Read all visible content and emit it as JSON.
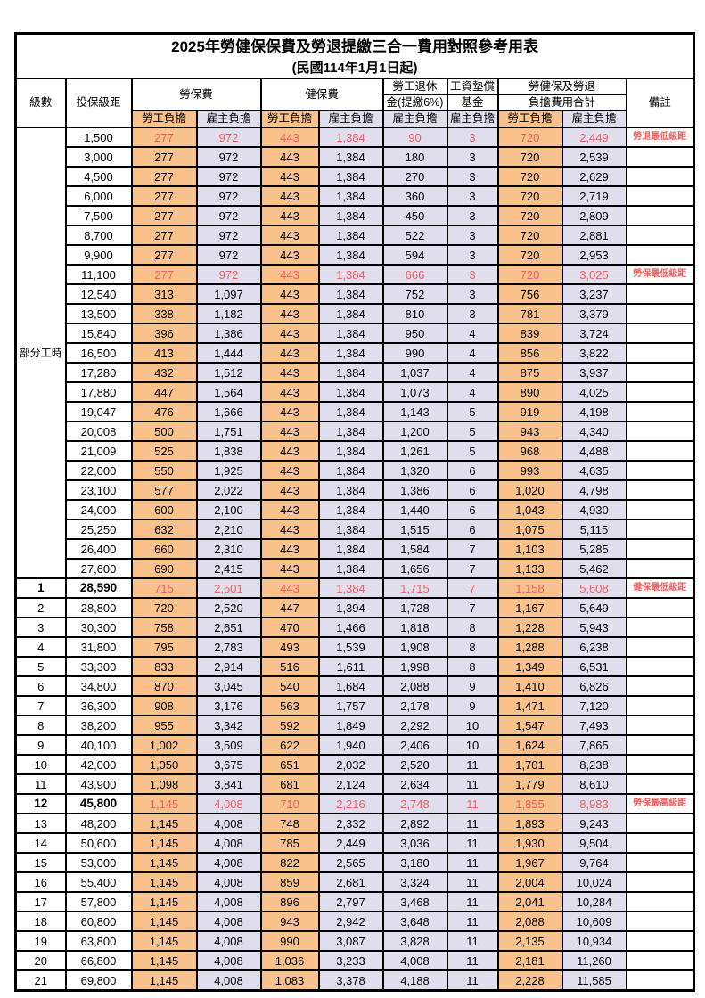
{
  "title": {
    "line1": "2025年勞健保保費及勞退提繳三合一費用對照參考用表",
    "line2": "(民國114年1月1日起)"
  },
  "colors": {
    "employee_bg": "#F9C28D",
    "employer_bg": "#E0DDEC",
    "highlight_red": "#F25F5F",
    "border": "#000000"
  },
  "header": {
    "level": "級數",
    "bracket": "投保級距",
    "labor_insurance": "勞保費",
    "health_insurance": "健保費",
    "pension_line1": "勞工退休",
    "pension_line2": "金(提繳6%)",
    "wage_fund_line1": "工資墊償",
    "wage_fund_line2": "基金",
    "total_line1": "勞健保及勞退",
    "total_line2": "負擔費用合計",
    "remark": "備註",
    "employee_label": "勞工負擔",
    "employer_label": "雇主負擔"
  },
  "table": {
    "part_time_label": "部分工時",
    "part_time_rowspan": 23,
    "rows": [
      {
        "level": null,
        "bracket": "1,500",
        "values": [
          "277",
          "972",
          "443",
          "1,384",
          "90",
          "3",
          "720",
          "2,449"
        ],
        "remark": "勞退最低級距",
        "red": true,
        "bold": false
      },
      {
        "level": null,
        "bracket": "3,000",
        "values": [
          "277",
          "972",
          "443",
          "1,384",
          "180",
          "3",
          "720",
          "2,539"
        ],
        "remark": "",
        "red": false,
        "bold": false
      },
      {
        "level": null,
        "bracket": "4,500",
        "values": [
          "277",
          "972",
          "443",
          "1,384",
          "270",
          "3",
          "720",
          "2,629"
        ],
        "remark": "",
        "red": false,
        "bold": false
      },
      {
        "level": null,
        "bracket": "6,000",
        "values": [
          "277",
          "972",
          "443",
          "1,384",
          "360",
          "3",
          "720",
          "2,719"
        ],
        "remark": "",
        "red": false,
        "bold": false
      },
      {
        "level": null,
        "bracket": "7,500",
        "values": [
          "277",
          "972",
          "443",
          "1,384",
          "450",
          "3",
          "720",
          "2,809"
        ],
        "remark": "",
        "red": false,
        "bold": false
      },
      {
        "level": null,
        "bracket": "8,700",
        "values": [
          "277",
          "972",
          "443",
          "1,384",
          "522",
          "3",
          "720",
          "2,881"
        ],
        "remark": "",
        "red": false,
        "bold": false
      },
      {
        "level": null,
        "bracket": "9,900",
        "values": [
          "277",
          "972",
          "443",
          "1,384",
          "594",
          "3",
          "720",
          "2,953"
        ],
        "remark": "",
        "red": false,
        "bold": false
      },
      {
        "level": null,
        "bracket": "11,100",
        "values": [
          "277",
          "972",
          "443",
          "1,384",
          "666",
          "3",
          "720",
          "3,025"
        ],
        "remark": "勞保最低級距",
        "red": true,
        "bold": false
      },
      {
        "level": null,
        "bracket": "12,540",
        "values": [
          "313",
          "1,097",
          "443",
          "1,384",
          "752",
          "3",
          "756",
          "3,237"
        ],
        "remark": "",
        "red": false,
        "bold": false
      },
      {
        "level": null,
        "bracket": "13,500",
        "values": [
          "338",
          "1,182",
          "443",
          "1,384",
          "810",
          "3",
          "781",
          "3,379"
        ],
        "remark": "",
        "red": false,
        "bold": false
      },
      {
        "level": null,
        "bracket": "15,840",
        "values": [
          "396",
          "1,386",
          "443",
          "1,384",
          "950",
          "4",
          "839",
          "3,724"
        ],
        "remark": "",
        "red": false,
        "bold": false
      },
      {
        "level": null,
        "bracket": "16,500",
        "values": [
          "413",
          "1,444",
          "443",
          "1,384",
          "990",
          "4",
          "856",
          "3,822"
        ],
        "remark": "",
        "red": false,
        "bold": false
      },
      {
        "level": null,
        "bracket": "17,280",
        "values": [
          "432",
          "1,512",
          "443",
          "1,384",
          "1,037",
          "4",
          "875",
          "3,937"
        ],
        "remark": "",
        "red": false,
        "bold": false
      },
      {
        "level": null,
        "bracket": "17,880",
        "values": [
          "447",
          "1,564",
          "443",
          "1,384",
          "1,073",
          "4",
          "890",
          "4,025"
        ],
        "remark": "",
        "red": false,
        "bold": false
      },
      {
        "level": null,
        "bracket": "19,047",
        "values": [
          "476",
          "1,666",
          "443",
          "1,384",
          "1,143",
          "5",
          "919",
          "4,198"
        ],
        "remark": "",
        "red": false,
        "bold": false
      },
      {
        "level": null,
        "bracket": "20,008",
        "values": [
          "500",
          "1,751",
          "443",
          "1,384",
          "1,200",
          "5",
          "943",
          "4,340"
        ],
        "remark": "",
        "red": false,
        "bold": false
      },
      {
        "level": null,
        "bracket": "21,009",
        "values": [
          "525",
          "1,838",
          "443",
          "1,384",
          "1,261",
          "5",
          "968",
          "4,488"
        ],
        "remark": "",
        "red": false,
        "bold": false
      },
      {
        "level": null,
        "bracket": "22,000",
        "values": [
          "550",
          "1,925",
          "443",
          "1,384",
          "1,320",
          "6",
          "993",
          "4,635"
        ],
        "remark": "",
        "red": false,
        "bold": false
      },
      {
        "level": null,
        "bracket": "23,100",
        "values": [
          "577",
          "2,022",
          "443",
          "1,384",
          "1,386",
          "6",
          "1,020",
          "4,798"
        ],
        "remark": "",
        "red": false,
        "bold": false
      },
      {
        "level": null,
        "bracket": "24,000",
        "values": [
          "600",
          "2,100",
          "443",
          "1,384",
          "1,440",
          "6",
          "1,043",
          "4,930"
        ],
        "remark": "",
        "red": false,
        "bold": false
      },
      {
        "level": null,
        "bracket": "25,250",
        "values": [
          "632",
          "2,210",
          "443",
          "1,384",
          "1,515",
          "6",
          "1,075",
          "5,115"
        ],
        "remark": "",
        "red": false,
        "bold": false
      },
      {
        "level": null,
        "bracket": "26,400",
        "values": [
          "660",
          "2,310",
          "443",
          "1,384",
          "1,584",
          "7",
          "1,103",
          "5,285"
        ],
        "remark": "",
        "red": false,
        "bold": false
      },
      {
        "level": null,
        "bracket": "27,600",
        "values": [
          "690",
          "2,415",
          "443",
          "1,384",
          "1,656",
          "7",
          "1,133",
          "5,462"
        ],
        "remark": "",
        "red": false,
        "bold": false
      },
      {
        "level": "1",
        "bracket": "28,590",
        "values": [
          "715",
          "2,501",
          "443",
          "1,384",
          "1,715",
          "7",
          "1,158",
          "5,608"
        ],
        "remark": "健保最低級距",
        "red": true,
        "bold": true
      },
      {
        "level": "2",
        "bracket": "28,800",
        "values": [
          "720",
          "2,520",
          "447",
          "1,394",
          "1,728",
          "7",
          "1,167",
          "5,649"
        ],
        "remark": "",
        "red": false,
        "bold": false
      },
      {
        "level": "3",
        "bracket": "30,300",
        "values": [
          "758",
          "2,651",
          "470",
          "1,466",
          "1,818",
          "8",
          "1,228",
          "5,943"
        ],
        "remark": "",
        "red": false,
        "bold": false
      },
      {
        "level": "4",
        "bracket": "31,800",
        "values": [
          "795",
          "2,783",
          "493",
          "1,539",
          "1,908",
          "8",
          "1,288",
          "6,238"
        ],
        "remark": "",
        "red": false,
        "bold": false
      },
      {
        "level": "5",
        "bracket": "33,300",
        "values": [
          "833",
          "2,914",
          "516",
          "1,611",
          "1,998",
          "8",
          "1,349",
          "6,531"
        ],
        "remark": "",
        "red": false,
        "bold": false
      },
      {
        "level": "6",
        "bracket": "34,800",
        "values": [
          "870",
          "3,045",
          "540",
          "1,684",
          "2,088",
          "9",
          "1,410",
          "6,826"
        ],
        "remark": "",
        "red": false,
        "bold": false
      },
      {
        "level": "7",
        "bracket": "36,300",
        "values": [
          "908",
          "3,176",
          "563",
          "1,757",
          "2,178",
          "9",
          "1,471",
          "7,120"
        ],
        "remark": "",
        "red": false,
        "bold": false
      },
      {
        "level": "8",
        "bracket": "38,200",
        "values": [
          "955",
          "3,342",
          "592",
          "1,849",
          "2,292",
          "10",
          "1,547",
          "7,493"
        ],
        "remark": "",
        "red": false,
        "bold": false
      },
      {
        "level": "9",
        "bracket": "40,100",
        "values": [
          "1,002",
          "3,509",
          "622",
          "1,940",
          "2,406",
          "10",
          "1,624",
          "7,865"
        ],
        "remark": "",
        "red": false,
        "bold": false
      },
      {
        "level": "10",
        "bracket": "42,000",
        "values": [
          "1,050",
          "3,675",
          "651",
          "2,032",
          "2,520",
          "11",
          "1,701",
          "8,238"
        ],
        "remark": "",
        "red": false,
        "bold": false
      },
      {
        "level": "11",
        "bracket": "43,900",
        "values": [
          "1,098",
          "3,841",
          "681",
          "2,124",
          "2,634",
          "11",
          "1,779",
          "8,610"
        ],
        "remark": "",
        "red": false,
        "bold": false
      },
      {
        "level": "12",
        "bracket": "45,800",
        "values": [
          "1,145",
          "4,008",
          "710",
          "2,216",
          "2,748",
          "11",
          "1,855",
          "8,983"
        ],
        "remark": "勞保最高級距",
        "red": true,
        "bold": true
      },
      {
        "level": "13",
        "bracket": "48,200",
        "values": [
          "1,145",
          "4,008",
          "748",
          "2,332",
          "2,892",
          "11",
          "1,893",
          "9,243"
        ],
        "remark": "",
        "red": false,
        "bold": false
      },
      {
        "level": "14",
        "bracket": "50,600",
        "values": [
          "1,145",
          "4,008",
          "785",
          "2,449",
          "3,036",
          "11",
          "1,930",
          "9,504"
        ],
        "remark": "",
        "red": false,
        "bold": false
      },
      {
        "level": "15",
        "bracket": "53,000",
        "values": [
          "1,145",
          "4,008",
          "822",
          "2,565",
          "3,180",
          "11",
          "1,967",
          "9,764"
        ],
        "remark": "",
        "red": false,
        "bold": false
      },
      {
        "level": "16",
        "bracket": "55,400",
        "values": [
          "1,145",
          "4,008",
          "859",
          "2,681",
          "3,324",
          "11",
          "2,004",
          "10,024"
        ],
        "remark": "",
        "red": false,
        "bold": false
      },
      {
        "level": "17",
        "bracket": "57,800",
        "values": [
          "1,145",
          "4,008",
          "896",
          "2,797",
          "3,468",
          "11",
          "2,041",
          "10,284"
        ],
        "remark": "",
        "red": false,
        "bold": false
      },
      {
        "level": "18",
        "bracket": "60,800",
        "values": [
          "1,145",
          "4,008",
          "943",
          "2,942",
          "3,648",
          "11",
          "2,088",
          "10,609"
        ],
        "remark": "",
        "red": false,
        "bold": false
      },
      {
        "level": "19",
        "bracket": "63,800",
        "values": [
          "1,145",
          "4,008",
          "990",
          "3,087",
          "3,828",
          "11",
          "2,135",
          "10,934"
        ],
        "remark": "",
        "red": false,
        "bold": false
      },
      {
        "level": "20",
        "bracket": "66,800",
        "values": [
          "1,145",
          "4,008",
          "1,036",
          "3,233",
          "4,008",
          "11",
          "2,181",
          "11,260"
        ],
        "remark": "",
        "red": false,
        "bold": false
      },
      {
        "level": "21",
        "bracket": "69,800",
        "values": [
          "1,145",
          "4,008",
          "1,083",
          "3,378",
          "4,188",
          "11",
          "2,228",
          "11,585"
        ],
        "remark": "",
        "red": false,
        "bold": false
      }
    ]
  }
}
